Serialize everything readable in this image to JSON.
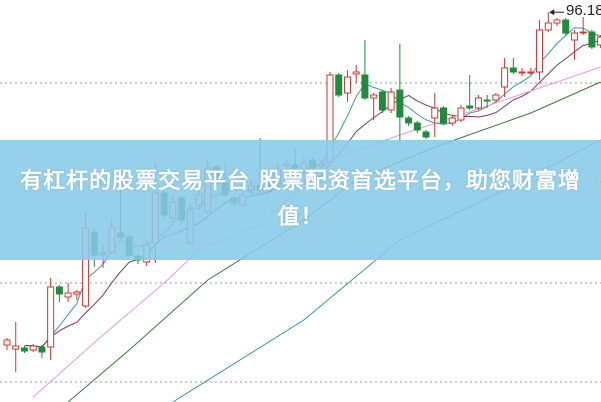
{
  "banner": {
    "text": "有杠杆的股票交易平台 股票配资首选平台，助您财富增值！"
  },
  "chart_data": {
    "type": "candlestick",
    "title": "",
    "xlabel": "",
    "ylabel": "",
    "ylim": [
      57.2,
      97.4
    ],
    "grid": {
      "horizontal": true,
      "style": "dotted",
      "values": [
        89.1,
        79.2,
        69.1,
        59.2
      ]
    },
    "max_marker": {
      "label": "96.18",
      "value": 96.18,
      "index": 62
    },
    "colors": {
      "up": "#d9322e",
      "down": "#1e8c3c",
      "ma5": "#3a9a98",
      "ma10": "#7a3a6a",
      "ma20": "#e79be0",
      "ma30": "#3b7a3a",
      "ma60": "#3a8fa8"
    },
    "candles": [
      [
        62.9,
        63.6,
        62.4,
        63.4
      ],
      [
        62.5,
        65.2,
        60.2,
        62.8
      ],
      [
        62.6,
        62.8,
        62.1,
        62.3
      ],
      [
        62.4,
        63.0,
        62.2,
        62.8
      ],
      [
        62.7,
        62.9,
        61.6,
        62.2
      ],
      [
        62.7,
        69.6,
        61.4,
        68.7
      ],
      [
        68.7,
        68.9,
        67.2,
        68.0
      ],
      [
        67.7,
        69.1,
        67.2,
        68.1
      ],
      [
        68.0,
        68.4,
        67.4,
        68.2
      ],
      [
        66.8,
        76.2,
        66.6,
        74.6
      ],
      [
        74.2,
        74.6,
        70.7,
        71.9
      ],
      [
        71.9,
        72.9,
        70.6,
        72.1
      ],
      [
        72.2,
        75.6,
        72.0,
        74.7
      ],
      [
        74.1,
        79.1,
        73.4,
        73.7
      ],
      [
        73.7,
        73.9,
        71.6,
        71.9
      ],
      [
        71.8,
        72.0,
        71.0,
        71.4
      ],
      [
        71.2,
        73.4,
        70.8,
        72.9
      ],
      [
        73.1,
        81.2,
        71.1,
        78.1
      ],
      [
        78.1,
        78.4,
        75.6,
        75.9
      ],
      [
        75.6,
        77.8,
        75.2,
        77.2
      ],
      [
        77.6,
        77.8,
        75.0,
        75.4
      ],
      [
        73.1,
        76.9,
        72.7,
        76.4
      ],
      [
        76.9,
        78.4,
        76.4,
        77.9
      ],
      [
        76.2,
        81.4,
        76.0,
        80.6
      ],
      [
        80.7,
        80.9,
        78.8,
        79.1
      ],
      [
        79.1,
        81.2,
        77.7,
        77.9
      ],
      [
        77.6,
        77.8,
        76.8,
        77.1
      ],
      [
        76.9,
        78.2,
        76.6,
        77.9
      ],
      [
        78.4,
        79.4,
        77.9,
        78.8
      ],
      [
        78.9,
        83.6,
        78.1,
        78.4
      ],
      [
        79.6,
        79.9,
        78.2,
        78.4
      ],
      [
        79.1,
        81.1,
        78.8,
        80.4
      ],
      [
        80.8,
        81.4,
        80.4,
        81.0
      ],
      [
        80.9,
        82.6,
        80.3,
        80.6
      ],
      [
        80.2,
        81.7,
        79.9,
        81.1
      ],
      [
        81.4,
        81.7,
        80.4,
        80.6
      ],
      [
        80.8,
        81.4,
        80.6,
        81.0
      ],
      [
        81.2,
        90.2,
        81.0,
        89.9
      ],
      [
        89.9,
        90.1,
        87.7,
        87.9
      ],
      [
        88.1,
        90.4,
        87.2,
        89.7
      ],
      [
        90.0,
        90.9,
        89.1,
        90.2
      ],
      [
        89.9,
        93.4,
        87.4,
        87.6
      ],
      [
        87.6,
        88.1,
        85.4,
        87.9
      ],
      [
        88.2,
        88.4,
        86.1,
        86.4
      ],
      [
        86.4,
        88.6,
        86.1,
        88.2
      ],
      [
        88.4,
        93.0,
        83.1,
        85.7
      ],
      [
        85.6,
        85.8,
        84.8,
        85.1
      ],
      [
        85.1,
        85.3,
        84.1,
        84.4
      ],
      [
        84.2,
        84.4,
        83.5,
        83.7
      ],
      [
        85.6,
        88.1,
        83.7,
        86.6
      ],
      [
        86.6,
        86.8,
        84.9,
        85.1
      ],
      [
        85.1,
        85.9,
        84.8,
        85.6
      ],
      [
        85.4,
        86.9,
        85.2,
        86.6
      ],
      [
        86.8,
        89.9,
        86.4,
        86.6
      ],
      [
        86.6,
        87.9,
        86.4,
        87.6
      ],
      [
        87.4,
        87.9,
        86.6,
        87.3
      ],
      [
        87.4,
        88.1,
        87.2,
        87.9
      ],
      [
        88.7,
        91.6,
        87.7,
        90.6
      ],
      [
        90.6,
        91.6,
        90.0,
        90.2
      ],
      [
        90.1,
        90.6,
        89.8,
        90.2
      ],
      [
        90.1,
        90.6,
        89.9,
        90.2
      ],
      [
        90.2,
        95.4,
        89.4,
        94.4
      ],
      [
        94.4,
        96.18,
        94.2,
        95.1
      ],
      [
        95.1,
        95.6,
        94.8,
        95.4
      ],
      [
        95.4,
        95.6,
        93.9,
        94.1
      ],
      [
        93.4,
        94.4,
        91.4,
        94.1
      ],
      [
        94.1,
        95.7,
        93.9,
        94.2
      ],
      [
        94.2,
        94.4,
        92.5,
        92.7
      ],
      [
        92.9,
        93.9,
        92.6,
        93.7
      ]
    ],
    "candle_fields": [
      "open",
      "high",
      "low",
      "close"
    ],
    "moving_averages": [
      {
        "key": "ma5",
        "period": 5
      },
      {
        "key": "ma10",
        "period": 10
      },
      {
        "key": "ma20",
        "points": [
          [
            3,
            57.7
          ],
          [
            11,
            63.9
          ],
          [
            18,
            69.1
          ],
          [
            22,
            72.4
          ],
          [
            29,
            74.9
          ],
          [
            37,
            81.4
          ],
          [
            45,
            83.9
          ],
          [
            56,
            87.1
          ],
          [
            68,
            90.7
          ]
        ]
      },
      {
        "key": "ma30",
        "points": [
          [
            7,
            57.2
          ],
          [
            14,
            62.4
          ],
          [
            23,
            69.4
          ],
          [
            34,
            75.4
          ],
          [
            40,
            79.4
          ],
          [
            49,
            82.7
          ],
          [
            60,
            86.1
          ],
          [
            68,
            89.2
          ]
        ]
      },
      {
        "key": "ma60",
        "points": [
          [
            19,
            57.2
          ],
          [
            34,
            65.4
          ],
          [
            45,
            73.4
          ],
          [
            57,
            78.4
          ],
          [
            68,
            83.4
          ]
        ]
      }
    ]
  }
}
